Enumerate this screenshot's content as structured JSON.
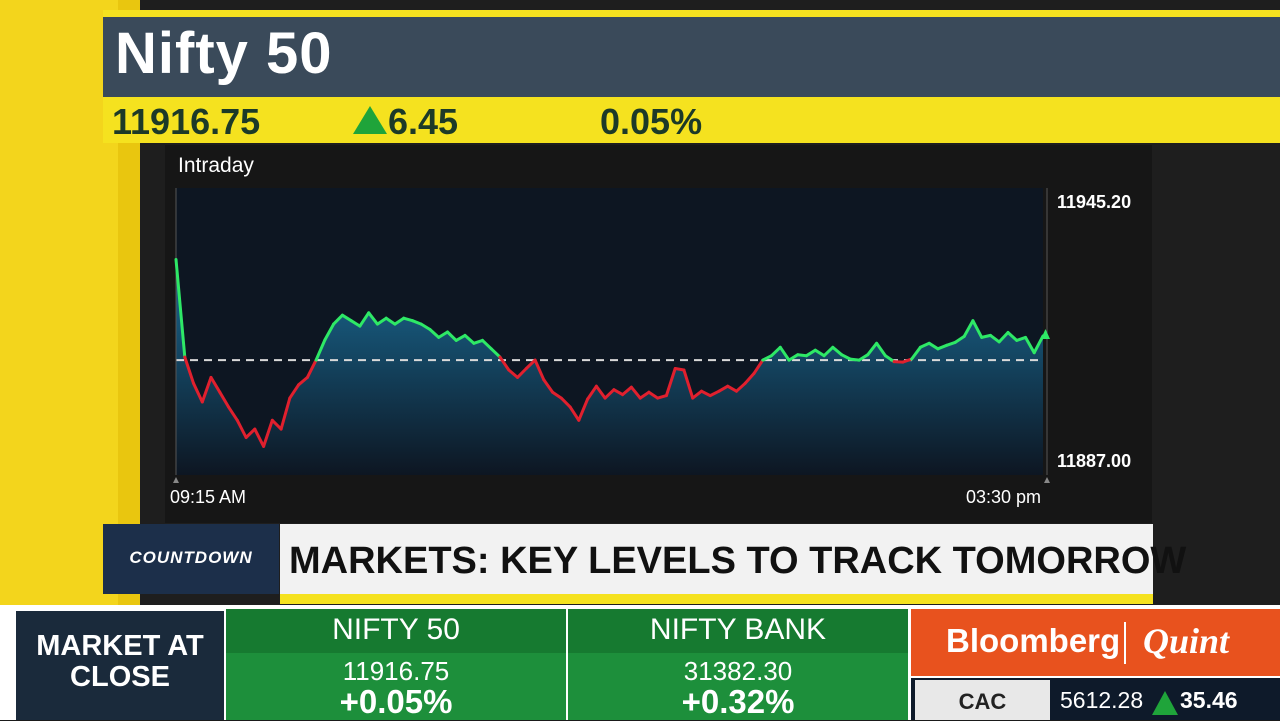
{
  "header": {
    "title": "Nifty 50",
    "price": "11916.75",
    "change": "6.45",
    "change_pct": "0.05%",
    "change_direction": "up"
  },
  "chart": {
    "label": "Intraday",
    "y_max_label": "11945.20",
    "y_min_label": "11887.00",
    "x_start_label": "09:15 AM",
    "x_end_label": "03:30 pm"
  },
  "chart_data": {
    "type": "area",
    "x_start": "09:15 AM",
    "x_end": "03:30 pm",
    "ylim": [
      11887.0,
      11945.2
    ],
    "reference_line": 11910.3,
    "colors": {
      "above": "#2ee866",
      "below": "#e0202e",
      "fill": "#1a6f9a"
    },
    "values": [
      11930.7,
      11910.9,
      11905.6,
      11901.8,
      11906.8,
      11903.8,
      11900.8,
      11898.1,
      11894.6,
      11896.3,
      11892.8,
      11898.1,
      11896.3,
      11902.6,
      11905.3,
      11906.8,
      11910.3,
      11914.4,
      11917.6,
      11919.4,
      11918.3,
      11917.2,
      11919.9,
      11917.6,
      11918.8,
      11917.6,
      11918.8,
      11918.3,
      11917.6,
      11916.5,
      11914.9,
      11916.0,
      11914.3,
      11915.3,
      11913.7,
      11914.3,
      11912.6,
      11910.9,
      11908.3,
      11906.8,
      11908.6,
      11910.3,
      11906.3,
      11903.8,
      11902.6,
      11900.8,
      11898.1,
      11902.4,
      11905.0,
      11902.6,
      11904.3,
      11903.3,
      11904.8,
      11902.6,
      11903.8,
      11902.6,
      11903.1,
      11908.6,
      11908.3,
      11902.6,
      11904.0,
      11903.1,
      11904.0,
      11905.0,
      11904.0,
      11905.6,
      11907.6,
      11910.3,
      11911.2,
      11912.9,
      11910.3,
      11911.4,
      11911.2,
      11912.3,
      11911.2,
      11912.9,
      11911.4,
      11910.5,
      11910.3,
      11911.4,
      11913.7,
      11911.2,
      11910.0,
      11909.9,
      11910.5,
      11912.9,
      11913.7,
      11912.6,
      11913.3,
      11913.9,
      11915.1,
      11918.3,
      11914.9,
      11915.3,
      11914.0,
      11915.9,
      11914.3,
      11914.9,
      11911.8,
      11915.2
    ]
  },
  "banner": {
    "program": "COUNTDOWN",
    "headline": "MARKETS: KEY LEVELS TO TRACK TOMORROW"
  },
  "ticker": {
    "section_label": "MARKET AT CLOSE",
    "tiles": [
      {
        "name": "NIFTY 50",
        "value": "11916.75",
        "pct": "+0.05%"
      },
      {
        "name": "NIFTY BANK",
        "value": "31382.30",
        "pct": "+0.32%"
      }
    ],
    "brand_left": "Bloomberg",
    "brand_right": "Quint",
    "strip": {
      "name": "CAC",
      "value": "5612.28",
      "change": "35.46",
      "direction": "up"
    }
  }
}
